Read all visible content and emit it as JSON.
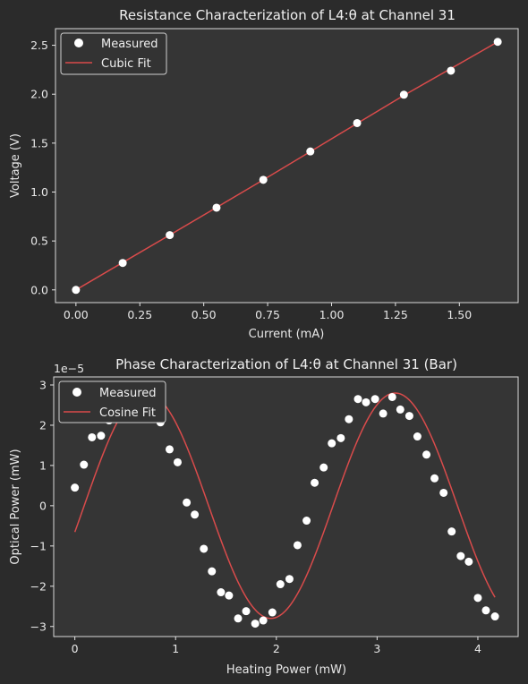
{
  "colors": {
    "background": "#2b2b2b",
    "axes_face": "#353535",
    "marker": "#ffffff",
    "fit_line": "#d94b4b"
  },
  "chart_data": [
    {
      "type": "scatter",
      "title": "Resistance Characterization of L4:θ at Channel 31",
      "xlabel": "Current (mA)",
      "ylabel": "Voltage (V)",
      "xlim": [
        -0.08,
        1.73
      ],
      "ylim": [
        -0.13,
        2.67
      ],
      "xticks": [
        0,
        0.25,
        0.5,
        0.75,
        1.0,
        1.25,
        1.5
      ],
      "xticklabels": [
        "0.00",
        "0.25",
        "0.50",
        "0.75",
        "1.00",
        "1.25",
        "1.50"
      ],
      "yticks": [
        0,
        0.5,
        1.0,
        1.5,
        2.0,
        2.5
      ],
      "yticklabels": [
        "0.0",
        "0.5",
        "1.0",
        "1.5",
        "2.0",
        "2.5"
      ],
      "legend": {
        "position": "top-left",
        "entries": [
          "Measured",
          "Cubic Fit"
        ]
      },
      "grid": false,
      "series": [
        {
          "name": "Measured",
          "kind": "points",
          "x": [
            0.0,
            0.183,
            0.367,
            0.55,
            0.733,
            0.917,
            1.1,
            1.283,
            1.467,
            1.65
          ],
          "y": [
            0.0,
            0.275,
            0.56,
            0.84,
            1.125,
            1.415,
            1.705,
            1.995,
            2.24,
            2.535
          ]
        },
        {
          "name": "Cubic Fit",
          "kind": "line",
          "x": [
            0.0,
            0.183,
            0.367,
            0.55,
            0.733,
            0.917,
            1.1,
            1.283,
            1.467,
            1.65
          ],
          "y": [
            0.0,
            0.28,
            0.561,
            0.842,
            1.125,
            1.413,
            1.701,
            1.988,
            2.262,
            2.535
          ]
        }
      ]
    },
    {
      "type": "scatter",
      "title": "Phase Characterization of L4:θ at Channel 31 (Bar)",
      "xlabel": "Heating Power (mW)",
      "ylabel": "Optical Power (mW)",
      "offset_label": "1e−5",
      "xlim": [
        -0.21,
        4.4
      ],
      "ylim": [
        -3.25,
        3.2
      ],
      "xticks": [
        0,
        1,
        2,
        3,
        4
      ],
      "xticklabels": [
        "0",
        "1",
        "2",
        "3",
        "4"
      ],
      "yticks": [
        -3,
        -2,
        -1,
        0,
        1,
        2,
        3
      ],
      "yticklabels": [
        "−3",
        "−2",
        "−1",
        "0",
        "1",
        "2",
        "3"
      ],
      "legend": {
        "position": "top-left",
        "entries": [
          "Measured",
          "Cosine Fit"
        ]
      },
      "grid": false,
      "series": [
        {
          "name": "Measured",
          "kind": "points",
          "x": [
            0.0,
            0.09,
            0.17,
            0.26,
            0.34,
            0.43,
            0.51,
            0.6,
            0.68,
            0.77,
            0.85,
            0.94,
            1.02,
            1.11,
            1.19,
            1.28,
            1.36,
            1.45,
            1.53,
            1.62,
            1.7,
            1.79,
            1.87,
            1.96,
            2.04,
            2.13,
            2.21,
            2.3,
            2.38,
            2.47,
            2.55,
            2.64,
            2.72,
            2.81,
            2.89,
            2.98,
            3.06,
            3.15,
            3.23,
            3.32,
            3.4,
            3.49,
            3.57,
            3.66,
            3.74,
            3.83,
            3.91,
            4.0,
            4.08,
            4.17
          ],
          "y": [
            0.45,
            1.02,
            1.7,
            1.74,
            2.12,
            2.65,
            2.9,
            2.4,
            2.9,
            2.5,
            2.07,
            1.4,
            1.08,
            0.08,
            -0.22,
            -1.07,
            -1.63,
            -2.15,
            -2.23,
            -2.8,
            -2.62,
            -2.93,
            -2.85,
            -2.65,
            -1.95,
            -1.82,
            -0.98,
            -0.37,
            0.57,
            0.95,
            1.55,
            1.68,
            2.15,
            2.65,
            2.57,
            2.65,
            2.29,
            2.7,
            2.39,
            2.23,
            1.72,
            1.27,
            0.68,
            0.32,
            -0.64,
            -1.25,
            -1.39,
            -2.29,
            -2.6,
            -2.75
          ]
        }
      ],
      "fit": {
        "name": "Cosine Fit",
        "amplitude": 2.8,
        "center": 0.0,
        "half_period": 1.235,
        "phase_offset": 0.575,
        "x_range": [
          0.0,
          4.17
        ]
      }
    }
  ]
}
